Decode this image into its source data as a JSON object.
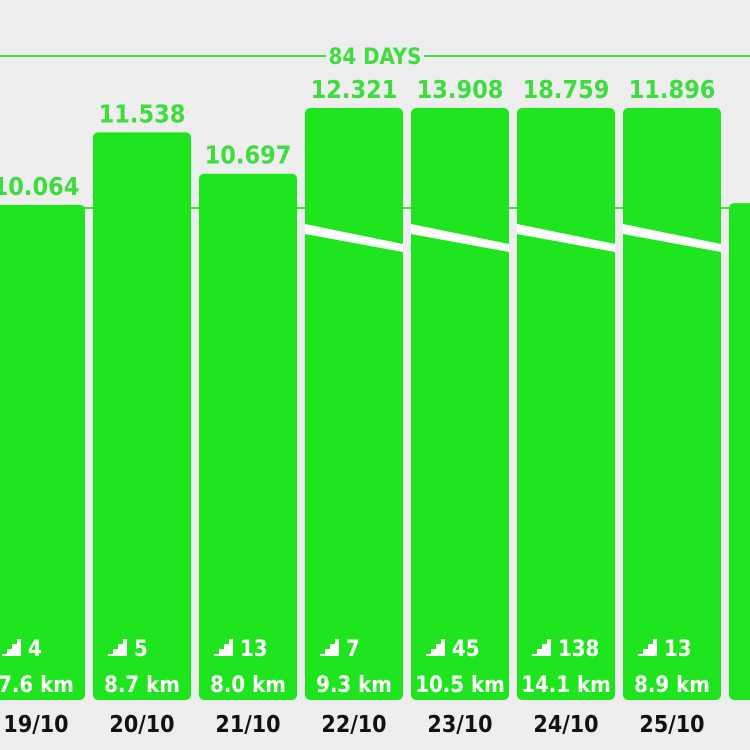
{
  "colors": {
    "background": "#eeeeee",
    "bar": "#1fe51f",
    "value_text": "#3fdc3f",
    "reference_line": "#44dd44",
    "bar_text": "#ffffff",
    "date_text": "#111111",
    "notch": "#ffffff"
  },
  "icons": {
    "floors": "stairs-icon"
  },
  "chart_data": {
    "type": "bar",
    "reference_line": {
      "label": "84 DAYS",
      "value": 10.0
    },
    "categories": [
      "19/10",
      "20/10",
      "21/10",
      "22/10",
      "23/10",
      "24/10",
      "25/10",
      ""
    ],
    "values_label": [
      "10.064",
      "11.538",
      "10.697",
      "12.321",
      "13.908",
      "18.759",
      "11.896",
      ""
    ],
    "values": [
      10.064,
      11.538,
      10.697,
      12.321,
      13.908,
      18.759,
      11.896,
      10.1
    ],
    "capped_above_limit": [
      false,
      false,
      false,
      true,
      true,
      true,
      true,
      false
    ],
    "floors": [
      "4",
      "5",
      "13",
      "7",
      "45",
      "138",
      "13",
      ""
    ],
    "distance": [
      "7.6 km",
      "8.7 km",
      "8.0 km",
      "9.3 km",
      "10.5 km",
      "14.1 km",
      "8.9 km",
      ""
    ],
    "ylim": [
      0,
      12.2
    ],
    "xlabel": "",
    "ylabel": "",
    "grid": false
  }
}
